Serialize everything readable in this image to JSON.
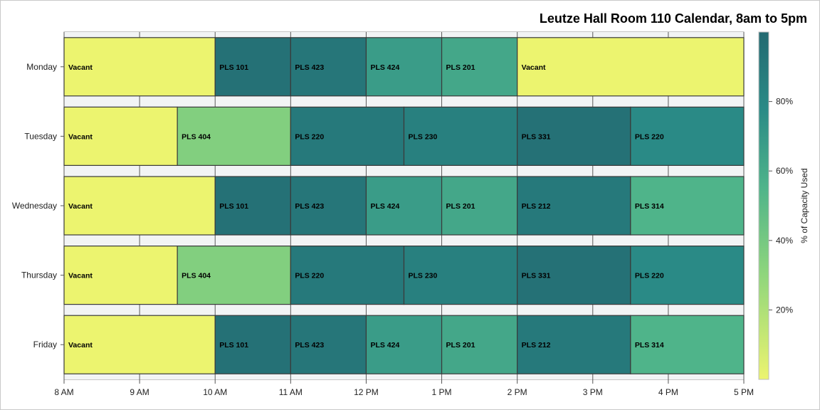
{
  "chart_data": {
    "type": "bar",
    "orientation": "horizontal-timeline",
    "title": "Leutze Hall Room 110 Calendar, 8am to 5pm",
    "xlabel": "",
    "ylabel": "",
    "x_range_hours": [
      8,
      17
    ],
    "x_tick_labels": [
      "8 AM",
      "9 AM",
      "10 AM",
      "11 AM",
      "12 PM",
      "1 PM",
      "2 PM",
      "3 PM",
      "4 PM",
      "5 PM"
    ],
    "days": [
      "Monday",
      "Tuesday",
      "Wednesday",
      "Thursday",
      "Friday"
    ],
    "grid": true,
    "color_legend": {
      "title": "% of Capacity Used",
      "position": "right",
      "range": [
        0,
        100
      ],
      "ticks": [
        20,
        40,
        60,
        80
      ],
      "tick_labels": [
        "20%",
        "40%",
        "60%",
        "80%"
      ],
      "colors": [
        "#ecf46f",
        "#8fd67c",
        "#4fb48a",
        "#2a8a86",
        "#236a71"
      ]
    },
    "series": [
      {
        "day": "Monday",
        "blocks": [
          {
            "label": "Vacant",
            "start": 8,
            "end": 10,
            "pct_capacity": 0
          },
          {
            "label": "PLS 101",
            "start": 10,
            "end": 11,
            "pct_capacity": 95
          },
          {
            "label": "PLS 423",
            "start": 11,
            "end": 12,
            "pct_capacity": 92
          },
          {
            "label": "PLS 424",
            "start": 12,
            "end": 13,
            "pct_capacity": 68
          },
          {
            "label": "PLS 201",
            "start": 13,
            "end": 14,
            "pct_capacity": 62
          },
          {
            "label": "Vacant",
            "start": 14,
            "end": 17,
            "pct_capacity": 0
          }
        ]
      },
      {
        "day": "Tuesday",
        "blocks": [
          {
            "label": "Vacant",
            "start": 8,
            "end": 9.5,
            "pct_capacity": 0
          },
          {
            "label": "PLS 404",
            "start": 9.5,
            "end": 11,
            "pct_capacity": 35
          },
          {
            "label": "PLS 220",
            "start": 11,
            "end": 12.5,
            "pct_capacity": 90
          },
          {
            "label": "PLS 230",
            "start": 12.5,
            "end": 14,
            "pct_capacity": 85
          },
          {
            "label": "PLS 331",
            "start": 14,
            "end": 15.5,
            "pct_capacity": 95
          },
          {
            "label": "PLS 220",
            "start": 15.5,
            "end": 17,
            "pct_capacity": 78
          }
        ]
      },
      {
        "day": "Wednesday",
        "blocks": [
          {
            "label": "Vacant",
            "start": 8,
            "end": 10,
            "pct_capacity": 0
          },
          {
            "label": "PLS 101",
            "start": 10,
            "end": 11,
            "pct_capacity": 95
          },
          {
            "label": "PLS 423",
            "start": 11,
            "end": 12,
            "pct_capacity": 92
          },
          {
            "label": "PLS 424",
            "start": 12,
            "end": 13,
            "pct_capacity": 68
          },
          {
            "label": "PLS 201",
            "start": 13,
            "end": 14,
            "pct_capacity": 62
          },
          {
            "label": "PLS 212",
            "start": 14,
            "end": 15.5,
            "pct_capacity": 90
          },
          {
            "label": "PLS 314",
            "start": 15.5,
            "end": 17,
            "pct_capacity": 55
          }
        ]
      },
      {
        "day": "Thursday",
        "blocks": [
          {
            "label": "Vacant",
            "start": 8,
            "end": 9.5,
            "pct_capacity": 0
          },
          {
            "label": "PLS 404",
            "start": 9.5,
            "end": 11,
            "pct_capacity": 35
          },
          {
            "label": "PLS 220",
            "start": 11,
            "end": 12.5,
            "pct_capacity": 90
          },
          {
            "label": "PLS 230",
            "start": 12.5,
            "end": 14,
            "pct_capacity": 85
          },
          {
            "label": "PLS 331",
            "start": 14,
            "end": 15.5,
            "pct_capacity": 95
          },
          {
            "label": "PLS 220",
            "start": 15.5,
            "end": 17,
            "pct_capacity": 78
          }
        ]
      },
      {
        "day": "Friday",
        "blocks": [
          {
            "label": "Vacant",
            "start": 8,
            "end": 10,
            "pct_capacity": 0
          },
          {
            "label": "PLS 101",
            "start": 10,
            "end": 11,
            "pct_capacity": 95
          },
          {
            "label": "PLS 423",
            "start": 11,
            "end": 12,
            "pct_capacity": 92
          },
          {
            "label": "PLS 424",
            "start": 12,
            "end": 13,
            "pct_capacity": 68
          },
          {
            "label": "PLS 201",
            "start": 13,
            "end": 14,
            "pct_capacity": 62
          },
          {
            "label": "PLS 212",
            "start": 14,
            "end": 15.5,
            "pct_capacity": 90
          },
          {
            "label": "PLS 314",
            "start": 15.5,
            "end": 17,
            "pct_capacity": 55
          }
        ]
      }
    ]
  }
}
